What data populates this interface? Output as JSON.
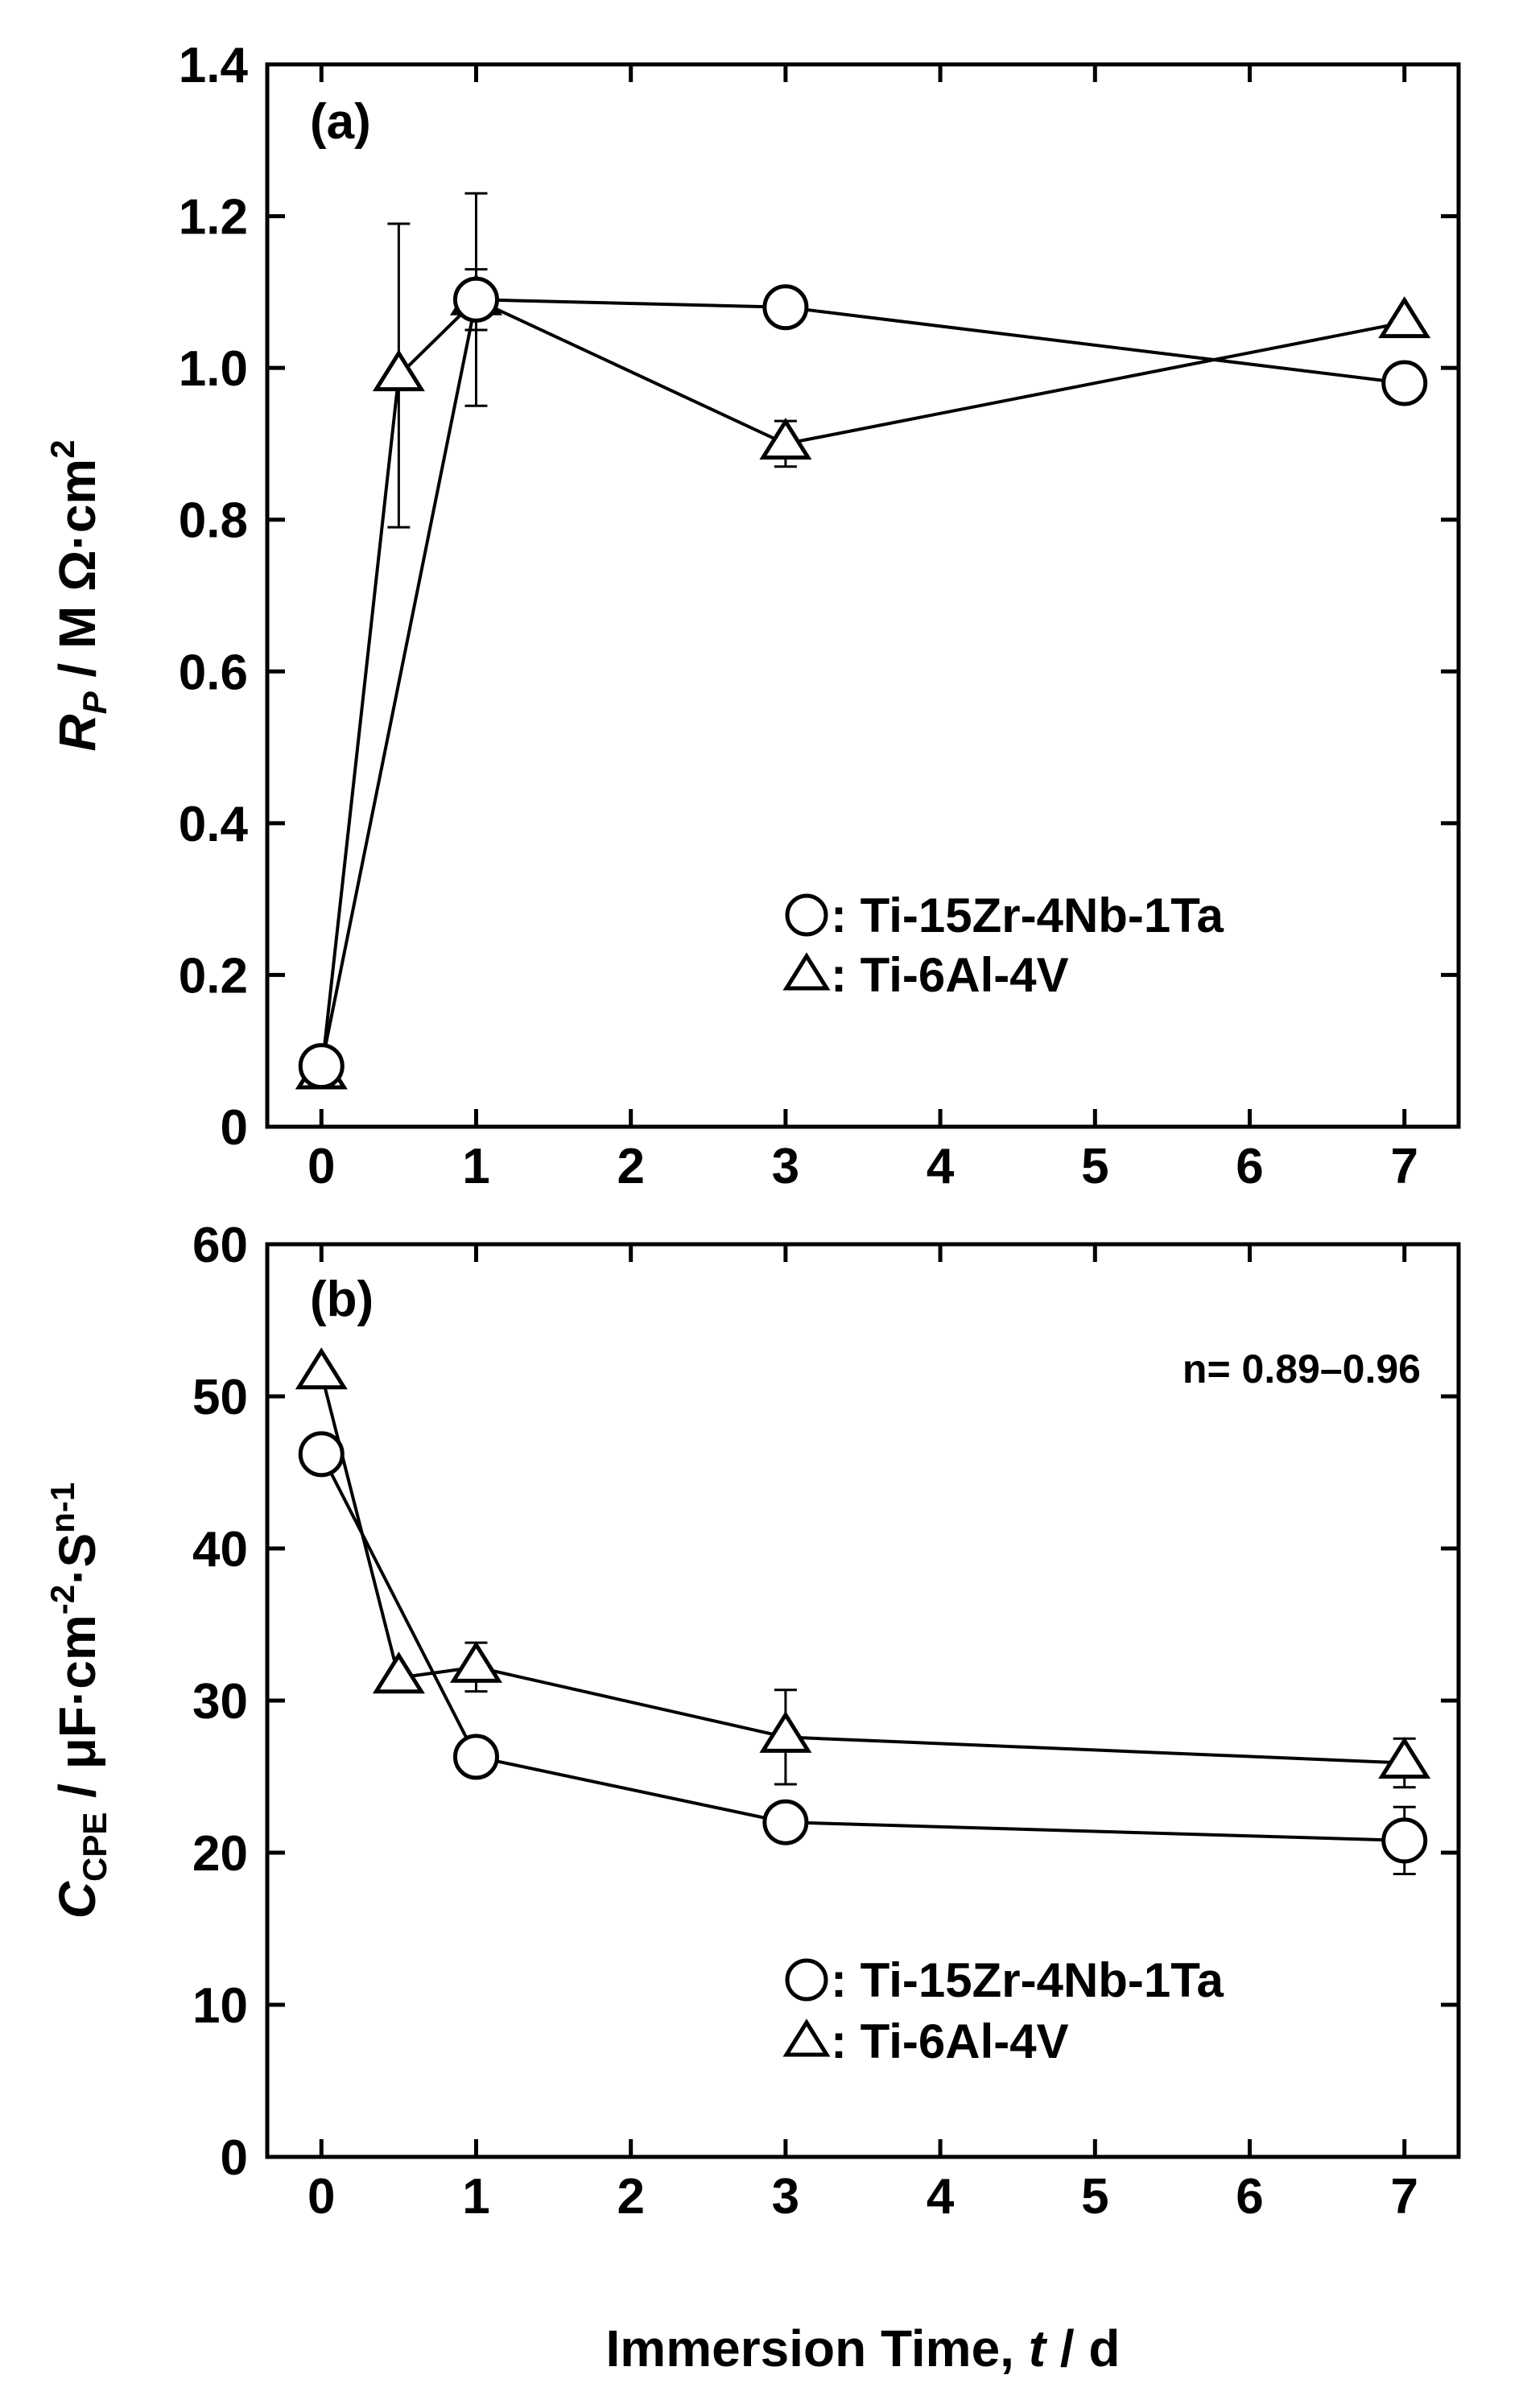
{
  "chart_data": [
    {
      "type": "line",
      "panel_label": "(a)",
      "ylabel": {
        "main": "R",
        "sub": "P",
        "rest": " / M Ω·cm",
        "sup": "2"
      },
      "ylim": [
        0,
        1.4
      ],
      "yticks": [
        0,
        0.2,
        0.4,
        0.6,
        0.8,
        1.0,
        1.2,
        1.4
      ],
      "ytick_labels": [
        "0",
        "0.2",
        "0.4",
        "0.6",
        "0.8",
        "1.0",
        "1.2",
        "1.4"
      ],
      "xlim": [
        -0.35,
        7.35
      ],
      "xticks": [
        0,
        1,
        2,
        3,
        4,
        5,
        6,
        7
      ],
      "xtick_labels": [
        "0",
        "1",
        "2",
        "3",
        "4",
        "5",
        "6",
        "7"
      ],
      "legend_position": "bottom-right",
      "series": [
        {
          "name": "Ti-15Zr-4Nb-1Ta",
          "legend_label": ": Ti-15Zr-4Nb-1Ta",
          "marker": "circle",
          "x": [
            0,
            1,
            3,
            7
          ],
          "y": [
            0.08,
            1.09,
            1.08,
            0.98
          ],
          "err_up": [
            0,
            0.04,
            0,
            0
          ],
          "err_down": [
            0,
            0.04,
            0,
            0
          ]
        },
        {
          "name": "Ti-6Al-4V",
          "legend_label": ": Ti-6Al-4V",
          "marker": "triangle",
          "x": [
            0,
            0.5,
            1,
            3,
            7
          ],
          "y": [
            0.07,
            0.99,
            1.09,
            0.9,
            1.06
          ],
          "err_up": [
            0,
            0.2,
            0.14,
            0.03,
            0
          ],
          "err_down": [
            0,
            0.2,
            0.14,
            0.03,
            0
          ]
        }
      ]
    },
    {
      "type": "line",
      "panel_label": "(b)",
      "annotation": "n= 0.89–0.96",
      "ylabel": {
        "main": "C",
        "sub": "CPE",
        "rest1": " / μF·cm",
        "sup1": "-2",
        "rest2": "·S",
        "sup2": "n-1"
      },
      "ylim": [
        0,
        60
      ],
      "yticks": [
        0,
        10,
        20,
        30,
        40,
        50,
        60
      ],
      "ytick_labels": [
        "0",
        "10",
        "20",
        "30",
        "40",
        "50",
        "60"
      ],
      "xlim": [
        -0.35,
        7.35
      ],
      "xticks": [
        0,
        1,
        2,
        3,
        4,
        5,
        6,
        7
      ],
      "xtick_labels": [
        "0",
        "1",
        "2",
        "3",
        "4",
        "5",
        "6",
        "7"
      ],
      "xlabel": {
        "main": "Immersion Time, ",
        "italic": "t",
        "rest": " / d"
      },
      "legend_position": "bottom-right",
      "series": [
        {
          "name": "Ti-15Zr-4Nb-1Ta",
          "legend_label": ": Ti-15Zr-4Nb-1Ta",
          "marker": "circle",
          "x": [
            0,
            1,
            3,
            7
          ],
          "y": [
            46.2,
            26.3,
            22.0,
            20.8
          ],
          "err_up": [
            0,
            0,
            0,
            2.2
          ],
          "err_down": [
            0,
            0,
            0,
            2.2
          ]
        },
        {
          "name": "Ti-6Al-4V",
          "legend_label": ": Ti-6Al-4V",
          "marker": "triangle",
          "x": [
            0,
            0.5,
            1,
            3,
            7
          ],
          "y": [
            51.5,
            31.5,
            32.2,
            27.6,
            25.9
          ],
          "err_up": [
            0,
            0,
            1.6,
            3.1,
            1.6
          ],
          "err_down": [
            0,
            0,
            1.6,
            3.1,
            1.6
          ]
        }
      ]
    }
  ]
}
